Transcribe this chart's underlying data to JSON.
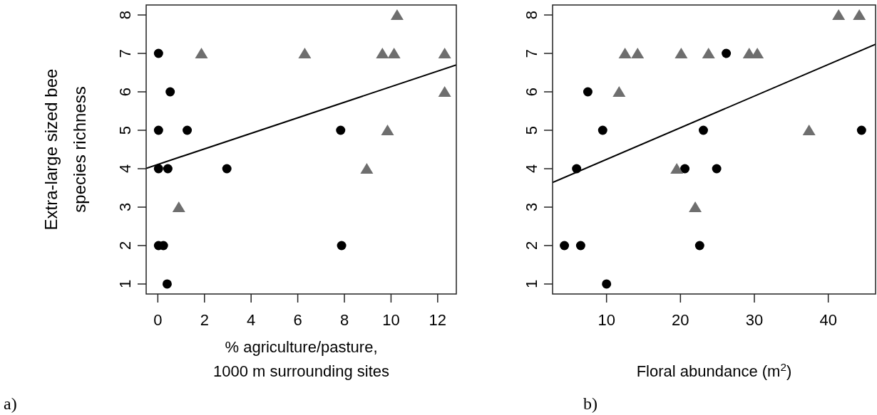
{
  "chart_data": [
    {
      "type": "scatter",
      "xlabel": "% agriculture/pasture,\n1000 m surrounding sites",
      "ylabel": "Extra-large sized bee\nspecies richness",
      "xlim": [
        -0.5,
        12.8
      ],
      "ylim": [
        0.74,
        8.26
      ],
      "xticks": [
        0,
        2,
        4,
        6,
        8,
        10,
        12
      ],
      "yticks": [
        1,
        2,
        3,
        4,
        5,
        6,
        7,
        8
      ],
      "grid": false,
      "annotations": [
        "a)"
      ],
      "series": [
        {
          "marker": "circle",
          "color": "#000000",
          "x": [
            0.03,
            0.53,
            0.03,
            1.26,
            7.84,
            0.03,
            0.43,
            2.96,
            0.03,
            0.24,
            7.88,
            0.4
          ],
          "values": [
            7,
            6,
            5,
            5,
            5,
            4,
            4,
            4,
            2,
            2,
            2,
            1
          ]
        },
        {
          "marker": "triangle",
          "color": "#6e6e6e",
          "x": [
            10.26,
            1.87,
            6.3,
            9.63,
            10.13,
            12.3,
            12.3,
            9.85,
            8.96,
            0.9
          ],
          "values": [
            8,
            7,
            7,
            7,
            7,
            7,
            6,
            5,
            4,
            3
          ]
        },
        {
          "type": "line",
          "marker": "none",
          "line_style": "solid",
          "color": "#000000",
          "x": [
            -0.5,
            12.8
          ],
          "values": [
            4.01,
            6.7
          ]
        }
      ]
    },
    {
      "type": "scatter",
      "xlabel": "Floral abundance (m$^{2}$)",
      "xlim": [
        2.7,
        46.4
      ],
      "ylim": [
        0.74,
        8.26
      ],
      "xticks": [
        10,
        20,
        30,
        40
      ],
      "yticks": [
        1,
        2,
        3,
        4,
        5,
        6,
        7,
        8
      ],
      "grid": false,
      "annotations": [
        "b)"
      ],
      "series": [
        {
          "marker": "circle",
          "color": "#000000",
          "x": [
            26.2,
            7.47,
            9.48,
            23.1,
            44.5,
            5.95,
            20.6,
            24.9,
            4.3,
            6.5,
            22.6,
            10.0
          ],
          "values": [
            7,
            6,
            5,
            5,
            5,
            4,
            4,
            4,
            2,
            2,
            2,
            1
          ]
        },
        {
          "marker": "triangle",
          "color": "#6e6e6e",
          "x": [
            41.4,
            44.2,
            12.5,
            14.2,
            20.1,
            23.8,
            29.3,
            30.4,
            11.7,
            37.4,
            19.5,
            22.0
          ],
          "values": [
            8,
            8,
            7,
            7,
            7,
            7,
            7,
            7,
            6,
            5,
            4,
            3
          ]
        },
        {
          "type": "line",
          "marker": "none",
          "line_style": "solid",
          "color": "#000000",
          "x": [
            2.7,
            46.4
          ],
          "values": [
            3.64,
            7.24
          ]
        }
      ]
    }
  ]
}
